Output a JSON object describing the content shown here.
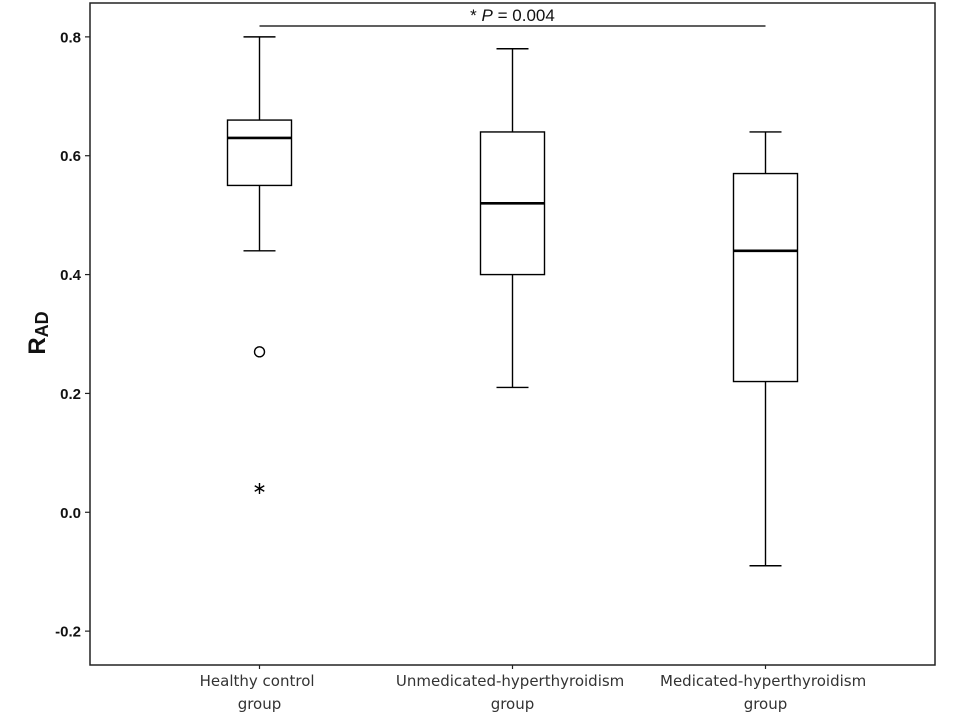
{
  "chart_data": {
    "type": "box",
    "categories": [
      "Healthy control group",
      "Unmedicated-hyperthyroidism group",
      "Medicated-hyperthyroidism group"
    ],
    "boxes": [
      {
        "whisker_low": 0.44,
        "q1": 0.55,
        "median": 0.63,
        "q3": 0.66,
        "whisker_high": 0.8,
        "outliers": [
          0.27
        ],
        "extremes": [
          0.04
        ]
      },
      {
        "whisker_low": 0.21,
        "q1": 0.4,
        "median": 0.52,
        "q3": 0.64,
        "whisker_high": 0.78,
        "outliers": [],
        "extremes": []
      },
      {
        "whisker_low": -0.09,
        "q1": 0.22,
        "median": 0.44,
        "q3": 0.57,
        "whisker_high": 0.64,
        "outliers": [],
        "extremes": []
      }
    ],
    "ylabel": {
      "text": "R",
      "subscript": "AD"
    },
    "ylim": [
      -0.257,
      0.857
    ],
    "yticks": [
      -0.2,
      0.0,
      0.2,
      0.4,
      0.6,
      0.8
    ],
    "ytick_labels": [
      "-0.2",
      "0.0",
      "0.2",
      "0.4",
      "0.6",
      "0.8"
    ],
    "grid": false,
    "significance": {
      "between": [
        0,
        2
      ],
      "marker": "*",
      "stat": "P",
      "value": "= 0.004"
    },
    "colors": {
      "line": "#000000",
      "box_fill": "#ffffff",
      "background": "#ffffff"
    }
  }
}
